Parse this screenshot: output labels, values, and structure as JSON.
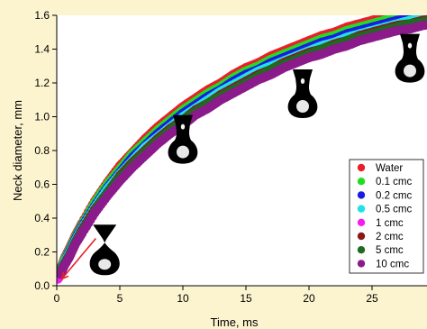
{
  "chart_data": {
    "type": "scatter",
    "xlabel": "Time, ms",
    "ylabel": "Neck diameter, mm",
    "xlim": [
      0,
      30
    ],
    "ylim": [
      0,
      1.6
    ],
    "xticks": [
      "0",
      "5",
      "10",
      "15",
      "20",
      "25",
      "30"
    ],
    "yticks": [
      "0.0",
      "0.2",
      "0.4",
      "0.6",
      "0.8",
      "1.0",
      "1.2",
      "1.4",
      "1.6"
    ],
    "grid": false,
    "legend_position": "bottom-right",
    "series": [
      {
        "name": "Water",
        "color": "#e8202a",
        "x": [
          0.3,
          0.6,
          1,
          1.5,
          2,
          3,
          4,
          5,
          6,
          7,
          8,
          9,
          10,
          11,
          12,
          13,
          14,
          15,
          16,
          17,
          18,
          19,
          20,
          21,
          22,
          23,
          24,
          25,
          26,
          27,
          28,
          29,
          30
        ],
        "y": [
          0.1,
          0.16,
          0.22,
          0.3,
          0.37,
          0.5,
          0.61,
          0.71,
          0.79,
          0.87,
          0.94,
          1.0,
          1.06,
          1.11,
          1.16,
          1.2,
          1.25,
          1.29,
          1.32,
          1.36,
          1.39,
          1.42,
          1.45,
          1.48,
          1.5,
          1.53,
          1.55,
          1.57,
          1.59,
          1.61,
          1.62,
          1.64,
          1.65
        ]
      },
      {
        "name": "0.1 cmc",
        "color": "#22dd22",
        "x": [
          0.3,
          0.6,
          1,
          1.5,
          2,
          3,
          4,
          5,
          6,
          7,
          8,
          9,
          10,
          11,
          12,
          13,
          14,
          15,
          16,
          17,
          18,
          19,
          20,
          21,
          22,
          23,
          24,
          25,
          26,
          27,
          28,
          29,
          30
        ],
        "y": [
          0.09,
          0.15,
          0.21,
          0.29,
          0.36,
          0.49,
          0.6,
          0.69,
          0.78,
          0.85,
          0.92,
          0.98,
          1.04,
          1.09,
          1.14,
          1.18,
          1.23,
          1.27,
          1.3,
          1.34,
          1.37,
          1.4,
          1.43,
          1.46,
          1.48,
          1.51,
          1.53,
          1.55,
          1.57,
          1.59,
          1.6,
          1.62,
          1.63
        ]
      },
      {
        "name": "0.2 cmc",
        "color": "#1c1ce0",
        "x": [
          0.3,
          0.6,
          1,
          1.5,
          2,
          3,
          4,
          5,
          6,
          7,
          8,
          9,
          10,
          11,
          12,
          13,
          14,
          15,
          16,
          17,
          18,
          19,
          20,
          21,
          22,
          23,
          24,
          25,
          26,
          27,
          28,
          29,
          30
        ],
        "y": [
          0.09,
          0.14,
          0.2,
          0.28,
          0.35,
          0.47,
          0.58,
          0.67,
          0.76,
          0.83,
          0.9,
          0.96,
          1.02,
          1.07,
          1.12,
          1.16,
          1.21,
          1.25,
          1.28,
          1.32,
          1.35,
          1.38,
          1.41,
          1.44,
          1.46,
          1.49,
          1.51,
          1.53,
          1.55,
          1.57,
          1.58,
          1.6,
          1.61
        ]
      },
      {
        "name": "0.5 cmc",
        "color": "#22e0e6",
        "x": [
          0.3,
          0.6,
          1,
          1.5,
          2,
          3,
          4,
          5,
          6,
          7,
          8,
          9,
          10,
          11,
          12,
          13,
          14,
          15,
          16,
          17,
          18,
          19,
          20,
          21,
          22,
          23,
          24,
          25,
          26,
          27,
          28,
          29,
          30
        ],
        "y": [
          0.08,
          0.14,
          0.19,
          0.27,
          0.34,
          0.46,
          0.57,
          0.66,
          0.74,
          0.82,
          0.88,
          0.94,
          1.0,
          1.05,
          1.1,
          1.15,
          1.19,
          1.23,
          1.27,
          1.3,
          1.33,
          1.36,
          1.39,
          1.42,
          1.44,
          1.47,
          1.49,
          1.51,
          1.53,
          1.55,
          1.57,
          1.58,
          1.6
        ]
      },
      {
        "name": "1 cmc",
        "color": "#f21ef2",
        "x": [
          0.1,
          0.3,
          0.6,
          1,
          1.5,
          2,
          3,
          4,
          5,
          6,
          7,
          8,
          9,
          10,
          11,
          12,
          13,
          14,
          15,
          16,
          17,
          18,
          19,
          20,
          21,
          22,
          23,
          24,
          25,
          26,
          27,
          28,
          29,
          30
        ],
        "y": [
          0.04,
          0.07,
          0.12,
          0.17,
          0.25,
          0.31,
          0.43,
          0.54,
          0.63,
          0.71,
          0.78,
          0.85,
          0.91,
          0.97,
          1.02,
          1.07,
          1.11,
          1.16,
          1.2,
          1.23,
          1.27,
          1.3,
          1.33,
          1.36,
          1.39,
          1.41,
          1.44,
          1.46,
          1.48,
          1.5,
          1.52,
          1.54,
          1.55,
          1.57
        ]
      },
      {
        "name": "2 cmc",
        "color": "#8a1a1a",
        "x": [
          0.3,
          0.6,
          1,
          1.5,
          2,
          3,
          4,
          5,
          6,
          7,
          8,
          9,
          10,
          11,
          12,
          13,
          14,
          15,
          16,
          17,
          18,
          19,
          20,
          21,
          22,
          23,
          24,
          25,
          26,
          27,
          28,
          29,
          30
        ],
        "y": [
          0.08,
          0.13,
          0.18,
          0.26,
          0.33,
          0.45,
          0.55,
          0.65,
          0.73,
          0.8,
          0.87,
          0.93,
          0.98,
          1.04,
          1.08,
          1.13,
          1.17,
          1.21,
          1.25,
          1.28,
          1.32,
          1.35,
          1.38,
          1.4,
          1.43,
          1.45,
          1.48,
          1.5,
          1.52,
          1.54,
          1.55,
          1.57,
          1.58
        ]
      },
      {
        "name": "5 cmc",
        "color": "#1f6b1f",
        "x": [
          0.3,
          0.6,
          1,
          1.5,
          2,
          3,
          4,
          5,
          6,
          7,
          8,
          9,
          10,
          11,
          12,
          13,
          14,
          15,
          16,
          17,
          18,
          19,
          20,
          21,
          22,
          23,
          24,
          25,
          26,
          27,
          28,
          29,
          30
        ],
        "y": [
          0.08,
          0.13,
          0.18,
          0.26,
          0.32,
          0.44,
          0.55,
          0.64,
          0.72,
          0.79,
          0.86,
          0.92,
          0.98,
          1.03,
          1.08,
          1.12,
          1.16,
          1.2,
          1.24,
          1.28,
          1.31,
          1.34,
          1.37,
          1.4,
          1.42,
          1.45,
          1.47,
          1.49,
          1.51,
          1.53,
          1.55,
          1.56,
          1.58
        ]
      },
      {
        "name": "10 cmc",
        "color": "#8b1a8b",
        "x": [
          0.3,
          0.6,
          1,
          1.5,
          2,
          3,
          4,
          5,
          6,
          7,
          8,
          9,
          10,
          11,
          12,
          13,
          14,
          15,
          16,
          17,
          18,
          19,
          20,
          21,
          22,
          23,
          24,
          25,
          26,
          27,
          28,
          29,
          30
        ],
        "y": [
          0.07,
          0.12,
          0.17,
          0.25,
          0.31,
          0.43,
          0.53,
          0.62,
          0.7,
          0.77,
          0.84,
          0.9,
          0.95,
          1.01,
          1.05,
          1.1,
          1.14,
          1.18,
          1.22,
          1.25,
          1.29,
          1.32,
          1.35,
          1.37,
          1.4,
          1.42,
          1.45,
          1.47,
          1.49,
          1.51,
          1.52,
          1.54,
          1.55
        ]
      }
    ],
    "annotations": [
      {
        "kind": "arrow",
        "color": "#e8202a",
        "from": [
          3.1,
          0.28
        ],
        "to": [
          0.4,
          0.04
        ]
      },
      {
        "kind": "drop-image",
        "name": "drop-image-1",
        "at": [
          3.8,
          0.18
        ]
      },
      {
        "kind": "drop-image",
        "name": "drop-image-2",
        "at": [
          10.0,
          0.85
        ]
      },
      {
        "kind": "drop-image",
        "name": "drop-image-3",
        "at": [
          19.5,
          1.12
        ]
      },
      {
        "kind": "drop-image",
        "name": "drop-image-4",
        "at": [
          28.0,
          1.33
        ]
      }
    ]
  }
}
